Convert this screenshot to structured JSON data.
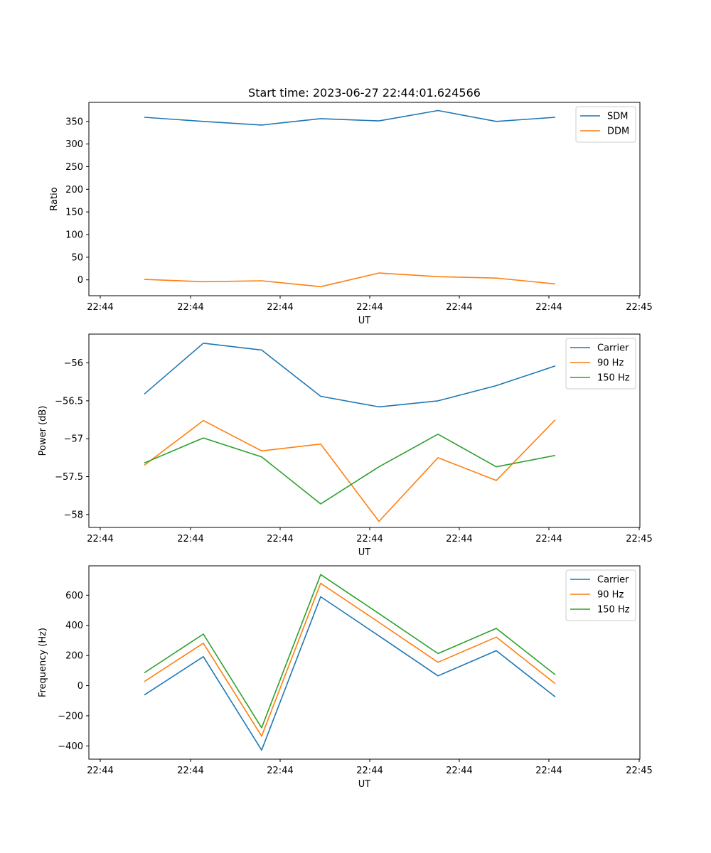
{
  "figure": {
    "title": "Start time: 2023-06-27 22:44:01.624566"
  },
  "chart_data": [
    {
      "type": "line",
      "title": "Start time: 2023-06-27 22:44:01.624566",
      "xlabel": "UT",
      "ylabel": "Ratio",
      "x": [
        "22:44",
        "22:44",
        "22:44",
        "22:44",
        "22:44",
        "22:44",
        "22:44",
        "22:44"
      ],
      "xticks": [
        "22:44",
        "22:44",
        "22:44",
        "22:44",
        "22:44",
        "22:44",
        "22:45"
      ],
      "yticks": [
        0,
        50,
        100,
        150,
        200,
        250,
        300,
        350
      ],
      "ylim": [
        -35,
        392
      ],
      "legend_loc": "upper right",
      "series": [
        {
          "name": "SDM",
          "color": "#1f77b4",
          "values": [
            359,
            350,
            342,
            356,
            351,
            374,
            350,
            359
          ]
        },
        {
          "name": "DDM",
          "color": "#ff7f0e",
          "values": [
            1,
            -4,
            -2,
            -15,
            15,
            7,
            4,
            -9
          ]
        }
      ]
    },
    {
      "type": "line",
      "title": "",
      "xlabel": "UT",
      "ylabel": "Power (dB)",
      "x": [
        "22:44",
        "22:44",
        "22:44",
        "22:44",
        "22:44",
        "22:44",
        "22:44",
        "22:44"
      ],
      "xticks": [
        "22:44",
        "22:44",
        "22:44",
        "22:44",
        "22:44",
        "22:44",
        "22:45"
      ],
      "yticks": [
        -58.0,
        -57.5,
        -57.0,
        -56.5,
        -56.0
      ],
      "ylim": [
        -58.17,
        -55.62
      ],
      "legend_loc": "upper right",
      "series": [
        {
          "name": "Carrier",
          "color": "#1f77b4",
          "values": [
            -56.41,
            -55.74,
            -55.83,
            -56.44,
            -56.58,
            -56.5,
            -56.3,
            -56.04
          ]
        },
        {
          "name": "90 Hz",
          "color": "#ff7f0e",
          "values": [
            -57.35,
            -56.76,
            -57.16,
            -57.07,
            -58.09,
            -57.25,
            -57.55,
            -56.75
          ]
        },
        {
          "name": "150 Hz",
          "color": "#2ca02c",
          "values": [
            -57.32,
            -56.99,
            -57.24,
            -57.86,
            -57.37,
            -56.94,
            -57.37,
            -57.22
          ]
        }
      ]
    },
    {
      "type": "line",
      "title": "",
      "xlabel": "UT",
      "ylabel": "Frequency (Hz)",
      "x": [
        "22:44",
        "22:44",
        "22:44",
        "22:44",
        "22:44",
        "22:44",
        "22:44",
        "22:44"
      ],
      "xticks": [
        "22:44",
        "22:44",
        "22:44",
        "22:44",
        "22:44",
        "22:44",
        "22:45"
      ],
      "yticks": [
        -400,
        -200,
        0,
        200,
        400,
        600
      ],
      "ylim": [
        -488,
        795
      ],
      "legend_loc": "upper right",
      "series": [
        {
          "name": "Carrier",
          "color": "#1f77b4",
          "values": [
            -62,
            192,
            -428,
            590,
            330,
            65,
            232,
            -75
          ]
        },
        {
          "name": "90 Hz",
          "color": "#ff7f0e",
          "values": [
            27,
            282,
            -335,
            679,
            420,
            155,
            322,
            13
          ]
        },
        {
          "name": "150 Hz",
          "color": "#2ca02c",
          "values": [
            85,
            342,
            -280,
            737,
            478,
            213,
            380,
            72
          ]
        }
      ]
    }
  ]
}
